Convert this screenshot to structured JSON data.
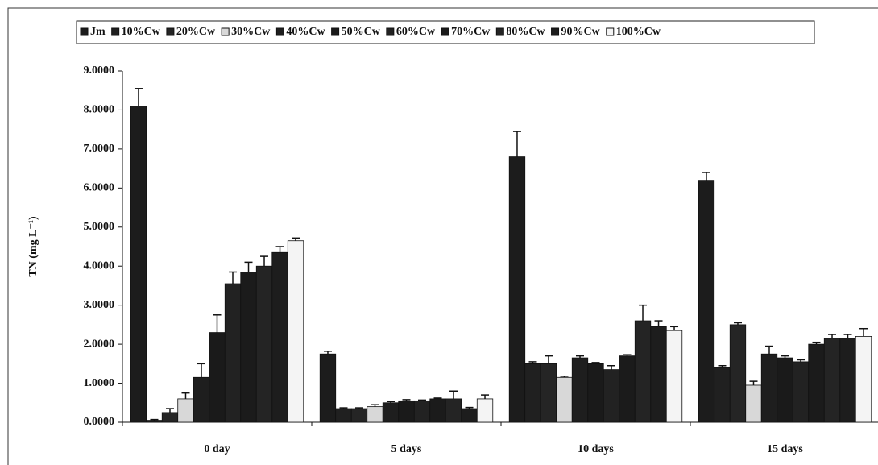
{
  "chart_data": {
    "type": "bar",
    "y_label": "TN (mg L⁻¹)",
    "categories": [
      "0 day",
      "5 days",
      "10 days",
      "15 days"
    ],
    "ylim": [
      0,
      9
    ],
    "yticks": [
      {
        "value": 0,
        "label": "0.0000"
      },
      {
        "value": 1,
        "label": "1.0000"
      },
      {
        "value": 2,
        "label": "2.0000"
      },
      {
        "value": 3,
        "label": "3.0000"
      },
      {
        "value": 4,
        "label": "4.0000"
      },
      {
        "value": 5,
        "label": "5.0000"
      },
      {
        "value": 6,
        "label": "6.0000"
      },
      {
        "value": 7,
        "label": "7.0000"
      },
      {
        "value": 8,
        "label": "8.0000"
      },
      {
        "value": 9,
        "label": "9.0000"
      }
    ],
    "series": [
      {
        "name": "Jm",
        "color": "#1c1c1c",
        "values": [
          8.1,
          1.75,
          6.8,
          6.2
        ],
        "errors": [
          0.45,
          0.07,
          0.65,
          0.2
        ]
      },
      {
        "name": "10%Cw",
        "color": "#202020",
        "values": [
          0.05,
          0.35,
          1.5,
          1.4
        ],
        "errors": [
          0.02,
          0.02,
          0.05,
          0.05
        ]
      },
      {
        "name": "20%Cw",
        "color": "#252525",
        "values": [
          0.25,
          0.35,
          1.5,
          2.5
        ],
        "errors": [
          0.1,
          0.02,
          0.2,
          0.05
        ]
      },
      {
        "name": "30%Cw",
        "color": "#d8d8d8",
        "values": [
          0.6,
          0.4,
          1.15,
          0.95
        ],
        "errors": [
          0.15,
          0.05,
          0.03,
          0.1
        ]
      },
      {
        "name": "40%Cw",
        "color": "#1e1e1e",
        "values": [
          1.15,
          0.5,
          1.65,
          1.75
        ],
        "errors": [
          0.35,
          0.03,
          0.05,
          0.2
        ]
      },
      {
        "name": "50%Cw",
        "color": "#1a1a1a",
        "values": [
          2.3,
          0.55,
          1.5,
          1.65
        ],
        "errors": [
          0.45,
          0.03,
          0.03,
          0.05
        ]
      },
      {
        "name": "60%Cw",
        "color": "#222222",
        "values": [
          3.55,
          0.55,
          1.35,
          1.55
        ],
        "errors": [
          0.3,
          0.02,
          0.1,
          0.05
        ]
      },
      {
        "name": "70%Cw",
        "color": "#1b1b1b",
        "values": [
          3.85,
          0.6,
          1.7,
          2.0
        ],
        "errors": [
          0.25,
          0.02,
          0.03,
          0.05
        ]
      },
      {
        "name": "80%Cw",
        "color": "#242424",
        "values": [
          4.0,
          0.6,
          2.6,
          2.15
        ],
        "errors": [
          0.25,
          0.2,
          0.4,
          0.1
        ]
      },
      {
        "name": "90%Cw",
        "color": "#1d1d1d",
        "values": [
          4.35,
          0.35,
          2.45,
          2.15
        ],
        "errors": [
          0.15,
          0.03,
          0.15,
          0.1
        ]
      },
      {
        "name": "100%Cw",
        "color": "#f4f4f4",
        "values": [
          4.65,
          0.6,
          2.35,
          2.2
        ],
        "errors": [
          0.07,
          0.1,
          0.1,
          0.2
        ]
      }
    ]
  }
}
